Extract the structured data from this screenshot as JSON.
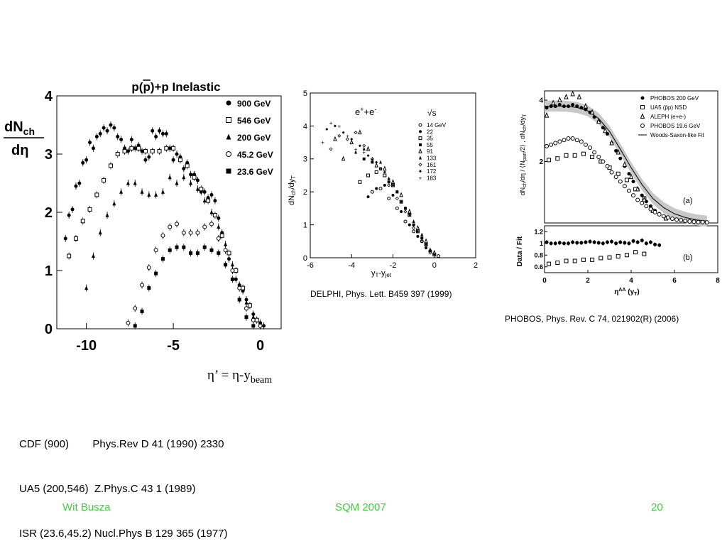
{
  "slide": {
    "eta_prime_prefix": "η’ = η-y",
    "eta_prime_sub": "beam",
    "references": [
      "CDF (900)        Phys.Rev D 41 (1990) 2330",
      "UA5 (200,546)  Z.Phys.C 43 1 (1989)",
      "ISR (23.6,45.2) Nucl.Phys B 129 365 (1977)"
    ],
    "delphi_caption": "DELPHI, Phys. Lett. B459 397 (1999)",
    "phobos_caption": "PHOBOS, Phys. Rev. C 74, 021902(R) (2006)",
    "footer": {
      "author": "Wit Busza",
      "conference": "SQM 2007",
      "page": "20",
      "color": "#3ecf3e"
    }
  },
  "chart_data": [
    {
      "type": "scatter",
      "title": "p(p)+p Inelastic",
      "ylabel": "dNch/dη",
      "xlim": [
        -11.7,
        1.2
      ],
      "ylim": [
        0,
        4
      ],
      "xticks": [
        "-10",
        "-5",
        "0"
      ],
      "yticks": [
        "0",
        "1",
        "2",
        "3",
        "4"
      ],
      "legend_position": "top-right",
      "series": [
        {
          "name": "900 GeV",
          "marker": "filled-circle",
          "x": [
            -11.2,
            -11,
            -10.8,
            -10.6,
            -10.4,
            -10.2,
            -10,
            -9.8,
            -9.6,
            -9.4,
            -9.2,
            -9,
            -8.8,
            -8.6,
            -8.4,
            -8.2,
            -8,
            -7.8,
            -7.6,
            -7.4,
            -7.2,
            -7,
            -6.8,
            -6.6,
            -6.4,
            -6.2,
            -6,
            -5.8,
            -5.6,
            -5.4,
            -5.2,
            -5,
            -4.8,
            -4.6,
            -4.4,
            -4.2,
            -4,
            -3.8,
            -3.6,
            -3.4,
            -3.2,
            -3,
            -2.8,
            -2.6,
            -2.4,
            -2.2,
            -2,
            -1.8,
            -1.6,
            -1.4,
            -1.2,
            -1,
            -0.8,
            -0.6,
            -0.4,
            -0.2,
            0,
            0.2
          ],
          "y": [
            1.55,
            1.95,
            2.05,
            2.45,
            2.5,
            2.85,
            2.9,
            3.2,
            3.1,
            3.3,
            3.35,
            3.45,
            3.4,
            3.5,
            3.45,
            3.3,
            3.25,
            3.1,
            3.05,
            3.25,
            3.1,
            3.15,
            3.05,
            2.9,
            2.95,
            3.4,
            3.3,
            3.4,
            3.35,
            3.35,
            3.1,
            2.9,
            3.0,
            2.95,
            2.75,
            2.85,
            2.65,
            2.65,
            2.55,
            2.35,
            2.35,
            2.25,
            2.3,
            2.2,
            1.9,
            1.65,
            1.35,
            1.2,
            1.0,
            0.85,
            0.75,
            0.65,
            0.5,
            0.4,
            0.25,
            0.15,
            0.1,
            0.05
          ]
        },
        {
          "name": "546 GeV",
          "marker": "open-square",
          "x": [
            -11,
            -10.6,
            -10.2,
            -9.8,
            -9.4,
            -9.0,
            -8.6,
            -8.2,
            -7.8,
            -7.4,
            -7.0,
            -6.6,
            -6.2,
            -5.8,
            -5.4,
            -5.0,
            -4.6,
            -4.2,
            -3.8,
            -3.4,
            -3.0,
            -2.6,
            -2.2,
            -1.8,
            -1.4,
            -1.0,
            -0.6,
            -0.2
          ],
          "y": [
            1.25,
            1.55,
            1.85,
            2.05,
            2.3,
            2.55,
            2.8,
            3.0,
            3.05,
            3.1,
            3.1,
            3.05,
            3.05,
            3.05,
            3.1,
            3.1,
            2.9,
            2.8,
            2.6,
            2.4,
            2.2,
            1.95,
            1.6,
            1.3,
            1.0,
            0.7,
            0.4,
            0.15
          ]
        },
        {
          "name": "200 GeV",
          "marker": "filled-triangle",
          "x": [
            -10,
            -9.6,
            -9.2,
            -8.8,
            -8.4,
            -8.0,
            -7.6,
            -7.2,
            -6.8,
            -6.4,
            -6.0,
            -5.6,
            -5.2,
            -4.8,
            -4.4,
            -4.0,
            -3.6,
            -3.2,
            -2.8,
            -2.4,
            -2.0,
            -1.6,
            -1.2,
            -0.8,
            -0.4,
            0.0
          ],
          "y": [
            0.7,
            1.25,
            1.65,
            1.95,
            2.15,
            2.35,
            2.5,
            2.5,
            2.35,
            2.3,
            2.3,
            2.35,
            2.6,
            2.5,
            2.6,
            2.5,
            2.4,
            2.2,
            2.0,
            1.75,
            1.45,
            1.1,
            0.75,
            0.45,
            0.2,
            0.07
          ]
        },
        {
          "name": "45.2 GeV",
          "marker": "open-circle",
          "x": [
            -7.6,
            -7.2,
            -6.8,
            -6.4,
            -6.0,
            -5.6,
            -5.2,
            -4.8,
            -4.4,
            -4.0,
            -3.6,
            -3.2,
            -2.8,
            -2.4,
            -2.0,
            -1.6,
            -1.2,
            -0.8,
            -0.4,
            0.0
          ],
          "y": [
            0.1,
            0.35,
            0.75,
            1.05,
            1.35,
            1.6,
            1.75,
            1.8,
            1.65,
            1.65,
            1.65,
            1.75,
            1.8,
            1.55,
            1.35,
            1.0,
            0.7,
            0.35,
            0.15,
            0.05
          ]
        },
        {
          "name": "23.6 GeV",
          "marker": "filled-square",
          "x": [
            -7.2,
            -6.8,
            -6.4,
            -6.0,
            -5.6,
            -5.2,
            -4.8,
            -4.4,
            -4.0,
            -3.6,
            -3.2,
            -2.8,
            -2.4,
            -2.0,
            -1.6,
            -1.2,
            -0.8,
            -0.4
          ],
          "y": [
            0.05,
            0.3,
            0.7,
            0.95,
            1.2,
            1.35,
            1.4,
            1.4,
            1.3,
            1.3,
            1.4,
            1.35,
            1.3,
            1.1,
            0.85,
            0.5,
            0.2,
            0.05
          ]
        }
      ]
    },
    {
      "type": "scatter",
      "ylabel": "dNch/dyT",
      "xlabel": "yT-yjet",
      "xlim": [
        -6,
        2
      ],
      "ylim": [
        0,
        5
      ],
      "xticks": [
        "-6",
        "-4",
        "-2",
        "0",
        "2"
      ],
      "yticks": [
        "0",
        "1",
        "2",
        "3",
        "4",
        "5"
      ],
      "annotation": "e+ + e-",
      "legend_title": "√s",
      "legend_position": "top-right",
      "series": [
        {
          "name": "14 GeV",
          "marker": "open-circle",
          "x": [
            -3.0,
            -2.6,
            -2.2,
            -1.8,
            -1.4,
            -1.0,
            -0.6,
            -0.2,
            0.2
          ],
          "y": [
            2.0,
            2.1,
            1.8,
            1.5,
            1.1,
            0.8,
            0.5,
            0.2,
            0.05
          ]
        },
        {
          "name": "22",
          "marker": "filled-circle",
          "x": [
            -3.2,
            -2.8,
            -2.4,
            -2.0,
            -1.6,
            -1.2,
            -0.8,
            -0.4,
            0.0
          ],
          "y": [
            1.85,
            2.1,
            2.2,
            1.9,
            1.4,
            1.0,
            0.65,
            0.3,
            0.1
          ]
        },
        {
          "name": "35",
          "marker": "open-square",
          "x": [
            -3.6,
            -3.2,
            -2.8,
            -2.4,
            -2.0,
            -1.6,
            -1.2,
            -0.8,
            -0.4,
            0.0
          ],
          "y": [
            2.3,
            2.5,
            2.6,
            2.5,
            2.2,
            1.7,
            1.3,
            0.8,
            0.4,
            0.1
          ]
        },
        {
          "name": "55",
          "marker": "filled-square",
          "x": [
            -3.4,
            -3.0,
            -2.6,
            -2.2,
            -1.8,
            -1.4,
            -1.0,
            -0.6,
            -0.2
          ],
          "y": [
            3.0,
            2.9,
            2.7,
            2.3,
            2.0,
            1.5,
            1.0,
            0.6,
            0.2
          ]
        },
        {
          "name": "91",
          "marker": "open-triangle",
          "x": [
            -4.8,
            -4.4,
            -4.0,
            -3.6,
            -3.2,
            -2.8,
            -2.4,
            -2.0,
            -1.6,
            -1.2,
            -0.8,
            -0.4,
            0.0
          ],
          "y": [
            3.6,
            3.0,
            3.5,
            3.8,
            3.3,
            2.8,
            2.7,
            2.3,
            1.9,
            1.4,
            0.9,
            0.5,
            0.15
          ]
        },
        {
          "name": "133",
          "marker": "filled-triangle",
          "x": [
            -3.8,
            -3.4,
            -3.0,
            -2.6,
            -2.2,
            -1.8,
            -1.4,
            -1.0,
            -0.6,
            -0.2
          ],
          "y": [
            3.2,
            3.3,
            3.0,
            2.9,
            2.4,
            2.0,
            1.5,
            1.1,
            0.7,
            0.25
          ]
        },
        {
          "name": "161",
          "marker": "open-diamond",
          "x": [
            -5.0,
            -4.6,
            -4.2,
            -3.8,
            -3.4,
            -3.0,
            -2.6,
            -2.2,
            -1.8,
            -1.4,
            -1.0,
            -0.6,
            -0.2
          ],
          "y": [
            3.3,
            3.7,
            3.6,
            3.8,
            3.4,
            3.0,
            2.7,
            2.2,
            1.8,
            1.4,
            0.9,
            0.5,
            0.15
          ]
        },
        {
          "name": "172",
          "marker": "filled-diamond",
          "x": [
            -5.2,
            -4.8,
            -4.4,
            -4.0,
            -3.6,
            -3.2,
            -2.8,
            -2.4,
            -2.0,
            -1.6,
            -1.2,
            -0.8,
            -0.4,
            0.0
          ],
          "y": [
            3.9,
            4.0,
            3.8,
            3.6,
            3.4,
            3.1,
            2.9,
            2.6,
            2.2,
            1.7,
            1.3,
            0.8,
            0.4,
            0.1
          ]
        },
        {
          "name": "183",
          "marker": "small-star",
          "x": [
            -5.4,
            -5.0,
            -4.6,
            -4.2,
            -3.8,
            -3.4,
            -3.0,
            -2.6,
            -2.2,
            -1.8,
            -1.4,
            -1.0,
            -0.6,
            -0.2
          ],
          "y": [
            3.5,
            4.1,
            4.0,
            3.7,
            3.3,
            3.2,
            3.0,
            2.7,
            2.4,
            2.0,
            1.5,
            1.0,
            0.6,
            0.2
          ]
        }
      ]
    },
    {
      "type": "scatter",
      "ylabel": "dNch/dη / ⟨Npart/2⟩ , dNch/dyT",
      "xlabel": "ηAA (yT)",
      "panel_label": "(a)",
      "xlim": [
        0,
        8
      ],
      "ylim": [
        0,
        4.3
      ],
      "xticks": [
        "0",
        "2",
        "4",
        "6",
        "8"
      ],
      "yticks": [
        "2",
        "4"
      ],
      "legend_position": "top-right",
      "series": [
        {
          "name": "PHOBOS 200 GeV",
          "marker": "filled-circle",
          "x": [
            0.1,
            0.3,
            0.5,
            0.7,
            0.9,
            1.1,
            1.3,
            1.5,
            1.7,
            1.9,
            2.1,
            2.3,
            2.5,
            2.7,
            2.9,
            3.1,
            3.3,
            3.5,
            3.7,
            3.9,
            4.1,
            4.3,
            4.5,
            4.7,
            4.9,
            5.1,
            5.3
          ],
          "y": [
            3.75,
            3.8,
            3.8,
            3.85,
            3.8,
            3.8,
            3.85,
            3.8,
            3.75,
            3.7,
            3.6,
            3.45,
            3.3,
            3.1,
            2.9,
            2.6,
            2.35,
            2.1,
            1.85,
            1.6,
            1.35,
            1.1,
            0.9,
            0.7,
            0.55,
            0.4,
            0.3
          ]
        },
        {
          "name": "UA5 (p̄p) NSD",
          "marker": "open-square",
          "x": [
            0.2,
            0.6,
            1.0,
            1.4,
            1.8,
            2.2,
            2.6,
            3.0,
            3.4,
            3.8,
            4.2,
            4.6
          ],
          "y": [
            2.05,
            2.1,
            2.2,
            2.2,
            2.25,
            2.15,
            2.0,
            1.8,
            1.6,
            1.4,
            1.1,
            0.8
          ]
        },
        {
          "name": "ALEPH (e+e-)",
          "marker": "open-triangle",
          "x": [
            0.1,
            0.4,
            0.7,
            1.0,
            1.3,
            1.6,
            1.9,
            2.2,
            2.5,
            2.8,
            3.1,
            3.4,
            3.7,
            4.0,
            4.3,
            4.6,
            5.0,
            5.6
          ],
          "y": [
            3.5,
            3.9,
            4.0,
            4.1,
            4.2,
            4.1,
            3.8,
            3.6,
            3.3,
            3.0,
            2.6,
            2.3,
            1.9,
            1.5,
            1.1,
            0.75,
            0.4,
            0.15
          ]
        },
        {
          "name": "PHOBOS 19.6 GeV",
          "marker": "open-circle",
          "x": [
            0.1,
            0.3,
            0.5,
            0.7,
            0.9,
            1.1,
            1.3,
            1.5,
            1.7,
            1.9,
            2.1,
            2.3,
            2.5,
            2.7,
            2.9,
            3.1,
            3.3,
            3.5,
            3.7,
            3.9,
            4.1,
            4.3,
            4.5,
            4.7,
            4.9,
            5.1,
            5.3,
            5.5,
            5.7,
            5.9,
            6.1,
            6.3,
            6.5,
            6.7,
            6.9,
            7.1,
            7.3,
            7.5
          ],
          "y": [
            2.5,
            2.55,
            2.6,
            2.65,
            2.7,
            2.75,
            2.75,
            2.7,
            2.65,
            2.55,
            2.45,
            2.3,
            2.15,
            2.0,
            1.85,
            1.65,
            1.5,
            1.35,
            1.2,
            1.05,
            0.9,
            0.75,
            0.65,
            0.55,
            0.45,
            0.35,
            0.28,
            0.22,
            0.18,
            0.14,
            0.11,
            0.09,
            0.07,
            0.05,
            0.04,
            0.03,
            0.03,
            0.02
          ]
        },
        {
          "name": "Woods-Saxon-like Fit",
          "marker": "line",
          "x": [
            0,
            0.5,
            1.0,
            1.5,
            2.0,
            2.5,
            3.0,
            3.5,
            4.0,
            4.5,
            5.0,
            5.5,
            6.0,
            6.5,
            7.0,
            7.5
          ],
          "y": [
            3.8,
            3.81,
            3.8,
            3.76,
            3.65,
            3.4,
            2.98,
            2.4,
            1.8,
            1.25,
            0.8,
            0.5,
            0.3,
            0.18,
            0.1,
            0.06
          ]
        }
      ]
    },
    {
      "type": "scatter",
      "ylabel": "Data / Fit",
      "panel_label": "(b)",
      "xlim": [
        0,
        8
      ],
      "ylim": [
        0.5,
        1.3
      ],
      "xticks": [
        "0",
        "2",
        "4",
        "6",
        "8"
      ],
      "yticks": [
        "0.6",
        "0.8",
        "1",
        "1.2"
      ],
      "series": [
        {
          "name": "PHOBOS 200 GeV",
          "marker": "filled-circle",
          "x": [
            0.1,
            0.3,
            0.5,
            0.7,
            0.9,
            1.1,
            1.3,
            1.5,
            1.7,
            1.9,
            2.1,
            2.3,
            2.5,
            2.7,
            2.9,
            3.1,
            3.3,
            3.5,
            3.7,
            3.9,
            4.1,
            4.3,
            4.5,
            4.7,
            4.9,
            5.1,
            5.3
          ],
          "y": [
            1.02,
            1.0,
            1.0,
            1.01,
            1.0,
            1.0,
            1.02,
            1.01,
            1.01,
            1.02,
            1.03,
            1.02,
            1.01,
            1.0,
            1.02,
            1.03,
            1.0,
            1.02,
            1.01,
            1.0,
            1.04,
            1.02,
            1.05,
            1.0,
            1.02,
            0.98,
            0.97
          ]
        },
        {
          "name": "UA5 (p̄p) NSD",
          "marker": "open-square",
          "x": [
            0.2,
            0.6,
            1.0,
            1.4,
            1.8,
            2.2,
            2.6,
            3.0,
            3.4,
            3.8,
            4.2,
            4.6
          ],
          "y": [
            0.65,
            0.67,
            0.7,
            0.7,
            0.72,
            0.72,
            0.75,
            0.76,
            0.78,
            0.8,
            0.85,
            0.82
          ]
        }
      ]
    }
  ]
}
